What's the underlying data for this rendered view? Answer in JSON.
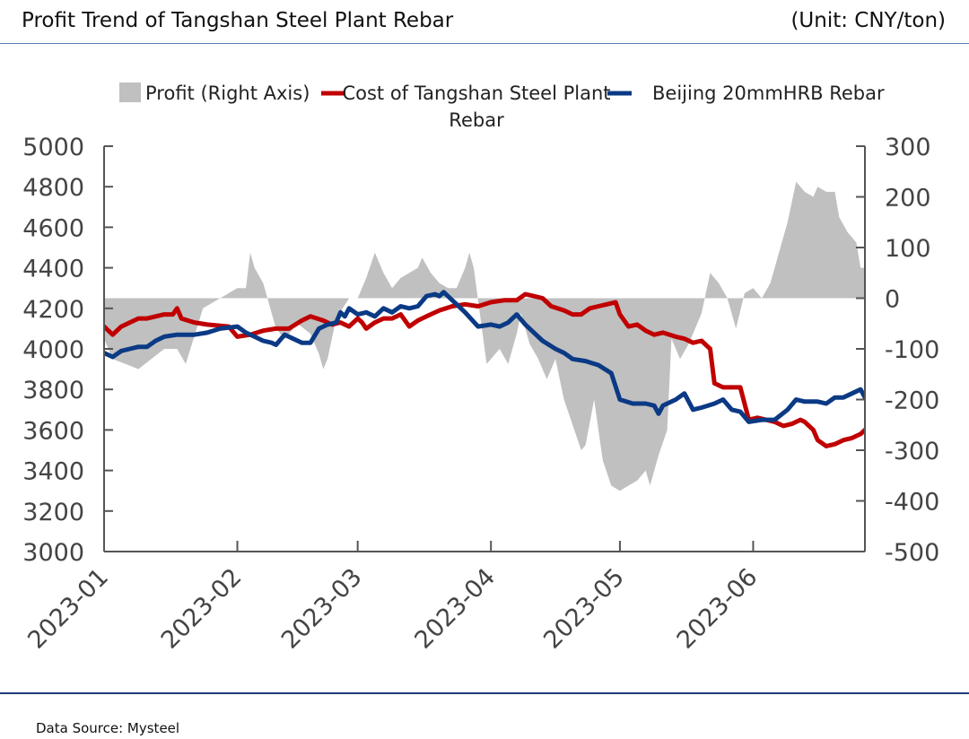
{
  "header": {
    "title": "Profit Trend of Tangshan Steel Plant Rebar",
    "unit": "(Unit: CNY/ton)"
  },
  "footer": {
    "source": "Data Source: Mysteel"
  },
  "colors": {
    "profit": "#c0c0c0",
    "cost": "#c00000",
    "rebar": "#0b3a85",
    "axis": "#555555",
    "rule_top": "#5b7fb0",
    "rule_bottom": "#1f3a7a"
  },
  "chart_data": {
    "type": "line",
    "title": "Profit Trend of Tangshan Steel Plant Rebar",
    "left_axis": {
      "ylim": [
        3000,
        5000
      ],
      "ticks": [
        3000,
        3200,
        3400,
        3600,
        3800,
        4000,
        4200,
        4400,
        4600,
        4800,
        5000
      ]
    },
    "right_axis": {
      "ylim": [
        -500,
        300
      ],
      "ticks": [
        -500,
        -400,
        -300,
        -200,
        -100,
        0,
        100,
        200,
        300
      ]
    },
    "x_axis": {
      "range": [
        "2023-01-01",
        "2023-06-27"
      ],
      "ticks": [
        "2023-01",
        "2023-02",
        "2023-03",
        "2023-04",
        "2023-05",
        "2023-06"
      ]
    },
    "grid": false,
    "legend_position": "top",
    "legend": [
      "Profit (Right Axis)",
      "Cost of Tangshan Steel Plant Rebar",
      "Beijing 20mmHRB Rebar"
    ],
    "series": [
      {
        "name": "Profit (Right Axis)",
        "style": "area",
        "axis": "right",
        "points": [
          [
            "2023-01-01",
            -80
          ],
          [
            "2023-01-03",
            -120
          ],
          [
            "2023-01-06",
            -130
          ],
          [
            "2023-01-09",
            -140
          ],
          [
            "2023-01-12",
            -120
          ],
          [
            "2023-01-15",
            -100
          ],
          [
            "2023-01-18",
            -100
          ],
          [
            "2023-01-20",
            -130
          ],
          [
            "2023-01-24",
            -20
          ],
          [
            "2023-01-28",
            0
          ],
          [
            "2023-02-01",
            20
          ],
          [
            "2023-02-03",
            20
          ],
          [
            "2023-02-04",
            90
          ],
          [
            "2023-02-05",
            60
          ],
          [
            "2023-02-07",
            30
          ],
          [
            "2023-02-08",
            0
          ],
          [
            "2023-02-10",
            -60
          ],
          [
            "2023-02-12",
            -80
          ],
          [
            "2023-02-15",
            -50
          ],
          [
            "2023-02-18",
            -70
          ],
          [
            "2023-02-20",
            -110
          ],
          [
            "2023-02-21",
            -140
          ],
          [
            "2023-02-22",
            -120
          ],
          [
            "2023-02-24",
            -40
          ],
          [
            "2023-02-27",
            0
          ],
          [
            "2023-03-01",
            0
          ],
          [
            "2023-03-03",
            40
          ],
          [
            "2023-03-05",
            90
          ],
          [
            "2023-03-07",
            50
          ],
          [
            "2023-03-09",
            20
          ],
          [
            "2023-03-11",
            40
          ],
          [
            "2023-03-13",
            50
          ],
          [
            "2023-03-15",
            60
          ],
          [
            "2023-03-16",
            80
          ],
          [
            "2023-03-18",
            50
          ],
          [
            "2023-03-20",
            30
          ],
          [
            "2023-03-22",
            20
          ],
          [
            "2023-03-24",
            20
          ],
          [
            "2023-03-26",
            60
          ],
          [
            "2023-03-27",
            90
          ],
          [
            "2023-03-28",
            60
          ],
          [
            "2023-03-31",
            -130
          ],
          [
            "2023-04-03",
            -100
          ],
          [
            "2023-04-05",
            -130
          ],
          [
            "2023-04-07",
            -70
          ],
          [
            "2023-04-08",
            -30
          ],
          [
            "2023-04-10",
            -90
          ],
          [
            "2023-04-12",
            -120
          ],
          [
            "2023-04-14",
            -160
          ],
          [
            "2023-04-16",
            -120
          ],
          [
            "2023-04-18",
            -200
          ],
          [
            "2023-04-20",
            -250
          ],
          [
            "2023-04-22",
            -300
          ],
          [
            "2023-04-23",
            -290
          ],
          [
            "2023-04-25",
            -200
          ],
          [
            "2023-04-27",
            -320
          ],
          [
            "2023-04-29",
            -370
          ],
          [
            "2023-05-01",
            -380
          ],
          [
            "2023-05-03",
            -370
          ],
          [
            "2023-05-05",
            -360
          ],
          [
            "2023-05-07",
            -340
          ],
          [
            "2023-05-08",
            -370
          ],
          [
            "2023-05-10",
            -310
          ],
          [
            "2023-05-12",
            -260
          ],
          [
            "2023-05-13",
            -80
          ],
          [
            "2023-05-15",
            -120
          ],
          [
            "2023-05-17",
            -90
          ],
          [
            "2023-05-18",
            -70
          ],
          [
            "2023-05-20",
            -30
          ],
          [
            "2023-05-22",
            50
          ],
          [
            "2023-05-24",
            30
          ],
          [
            "2023-05-26",
            0
          ],
          [
            "2023-05-28",
            -60
          ],
          [
            "2023-05-30",
            10
          ],
          [
            "2023-06-01",
            20
          ],
          [
            "2023-06-03",
            0
          ],
          [
            "2023-06-05",
            30
          ],
          [
            "2023-06-07",
            90
          ],
          [
            "2023-06-09",
            150
          ],
          [
            "2023-06-11",
            230
          ],
          [
            "2023-06-13",
            210
          ],
          [
            "2023-06-15",
            200
          ],
          [
            "2023-06-16",
            220
          ],
          [
            "2023-06-18",
            210
          ],
          [
            "2023-06-20",
            210
          ],
          [
            "2023-06-21",
            160
          ],
          [
            "2023-06-23",
            130
          ],
          [
            "2023-06-25",
            110
          ],
          [
            "2023-06-26",
            60
          ],
          [
            "2023-06-27",
            60
          ]
        ]
      },
      {
        "name": "Cost of Tangshan Steel Plant Rebar",
        "style": "line",
        "axis": "left",
        "points": [
          [
            "2023-01-01",
            4110
          ],
          [
            "2023-01-03",
            4070
          ],
          [
            "2023-01-05",
            4110
          ],
          [
            "2023-01-07",
            4130
          ],
          [
            "2023-01-09",
            4150
          ],
          [
            "2023-01-11",
            4150
          ],
          [
            "2023-01-13",
            4160
          ],
          [
            "2023-01-15",
            4170
          ],
          [
            "2023-01-17",
            4170
          ],
          [
            "2023-01-18",
            4200
          ],
          [
            "2023-01-19",
            4150
          ],
          [
            "2023-01-22",
            4130
          ],
          [
            "2023-01-25",
            4120
          ],
          [
            "2023-01-30",
            4110
          ],
          [
            "2023-02-01",
            4060
          ],
          [
            "2023-02-04",
            4070
          ],
          [
            "2023-02-07",
            4090
          ],
          [
            "2023-02-10",
            4100
          ],
          [
            "2023-02-13",
            4100
          ],
          [
            "2023-02-16",
            4140
          ],
          [
            "2023-02-18",
            4160
          ],
          [
            "2023-02-21",
            4140
          ],
          [
            "2023-02-23",
            4120
          ],
          [
            "2023-02-25",
            4130
          ],
          [
            "2023-02-27",
            4110
          ],
          [
            "2023-03-01",
            4150
          ],
          [
            "2023-03-02",
            4130
          ],
          [
            "2023-03-03",
            4100
          ],
          [
            "2023-03-05",
            4130
          ],
          [
            "2023-03-07",
            4150
          ],
          [
            "2023-03-09",
            4150
          ],
          [
            "2023-03-11",
            4170
          ],
          [
            "2023-03-13",
            4110
          ],
          [
            "2023-03-15",
            4140
          ],
          [
            "2023-03-17",
            4160
          ],
          [
            "2023-03-20",
            4190
          ],
          [
            "2023-03-23",
            4210
          ],
          [
            "2023-03-26",
            4220
          ],
          [
            "2023-03-29",
            4210
          ],
          [
            "2023-04-01",
            4230
          ],
          [
            "2023-04-04",
            4240
          ],
          [
            "2023-04-07",
            4240
          ],
          [
            "2023-04-09",
            4270
          ],
          [
            "2023-04-11",
            4260
          ],
          [
            "2023-04-13",
            4250
          ],
          [
            "2023-04-15",
            4210
          ],
          [
            "2023-04-18",
            4190
          ],
          [
            "2023-04-20",
            4170
          ],
          [
            "2023-04-22",
            4170
          ],
          [
            "2023-04-24",
            4200
          ],
          [
            "2023-04-26",
            4210
          ],
          [
            "2023-04-28",
            4220
          ],
          [
            "2023-04-30",
            4230
          ],
          [
            "2023-05-01",
            4170
          ],
          [
            "2023-05-03",
            4110
          ],
          [
            "2023-05-05",
            4120
          ],
          [
            "2023-05-07",
            4090
          ],
          [
            "2023-05-09",
            4070
          ],
          [
            "2023-05-11",
            4080
          ],
          [
            "2023-05-14",
            4060
          ],
          [
            "2023-05-16",
            4050
          ],
          [
            "2023-05-18",
            4030
          ],
          [
            "2023-05-20",
            4040
          ],
          [
            "2023-05-22",
            4000
          ],
          [
            "2023-05-23",
            3830
          ],
          [
            "2023-05-25",
            3810
          ],
          [
            "2023-05-27",
            3810
          ],
          [
            "2023-05-29",
            3810
          ],
          [
            "2023-05-31",
            3650
          ],
          [
            "2023-06-02",
            3660
          ],
          [
            "2023-06-04",
            3650
          ],
          [
            "2023-06-06",
            3640
          ],
          [
            "2023-06-08",
            3620
          ],
          [
            "2023-06-10",
            3630
          ],
          [
            "2023-06-12",
            3650
          ],
          [
            "2023-06-13",
            3640
          ],
          [
            "2023-06-15",
            3600
          ],
          [
            "2023-06-16",
            3550
          ],
          [
            "2023-06-18",
            3520
          ],
          [
            "2023-06-20",
            3530
          ],
          [
            "2023-06-22",
            3550
          ],
          [
            "2023-06-24",
            3560
          ],
          [
            "2023-06-26",
            3580
          ],
          [
            "2023-06-28",
            3620
          ],
          [
            "2023-06-30",
            3620
          ],
          [
            "2023-07-02",
            3620
          ],
          [
            "2023-07-03",
            3660
          ]
        ]
      },
      {
        "name": "Beijing 20mmHRB Rebar",
        "style": "line",
        "axis": "left",
        "points": [
          [
            "2023-01-01",
            3980
          ],
          [
            "2023-01-03",
            3960
          ],
          [
            "2023-01-05",
            3990
          ],
          [
            "2023-01-07",
            4000
          ],
          [
            "2023-01-09",
            4010
          ],
          [
            "2023-01-11",
            4010
          ],
          [
            "2023-01-13",
            4040
          ],
          [
            "2023-01-15",
            4060
          ],
          [
            "2023-01-18",
            4070
          ],
          [
            "2023-01-22",
            4070
          ],
          [
            "2023-01-25",
            4080
          ],
          [
            "2023-01-28",
            4100
          ],
          [
            "2023-02-01",
            4110
          ],
          [
            "2023-02-03",
            4080
          ],
          [
            "2023-02-05",
            4060
          ],
          [
            "2023-02-07",
            4040
          ],
          [
            "2023-02-09",
            4030
          ],
          [
            "2023-02-10",
            4020
          ],
          [
            "2023-02-12",
            4070
          ],
          [
            "2023-02-14",
            4050
          ],
          [
            "2023-02-16",
            4030
          ],
          [
            "2023-02-18",
            4030
          ],
          [
            "2023-02-20",
            4100
          ],
          [
            "2023-02-22",
            4120
          ],
          [
            "2023-02-24",
            4130
          ],
          [
            "2023-02-25",
            4180
          ],
          [
            "2023-02-26",
            4160
          ],
          [
            "2023-02-27",
            4200
          ],
          [
            "2023-03-01",
            4170
          ],
          [
            "2023-03-03",
            4180
          ],
          [
            "2023-03-05",
            4160
          ],
          [
            "2023-03-07",
            4200
          ],
          [
            "2023-03-09",
            4180
          ],
          [
            "2023-03-11",
            4210
          ],
          [
            "2023-03-13",
            4200
          ],
          [
            "2023-03-15",
            4210
          ],
          [
            "2023-03-17",
            4260
          ],
          [
            "2023-03-19",
            4270
          ],
          [
            "2023-03-20",
            4260
          ],
          [
            "2023-03-21",
            4280
          ],
          [
            "2023-03-23",
            4240
          ],
          [
            "2023-03-26",
            4180
          ],
          [
            "2023-03-29",
            4110
          ],
          [
            "2023-04-01",
            4120
          ],
          [
            "2023-04-03",
            4110
          ],
          [
            "2023-04-05",
            4130
          ],
          [
            "2023-04-07",
            4170
          ],
          [
            "2023-04-09",
            4120
          ],
          [
            "2023-04-11",
            4080
          ],
          [
            "2023-04-13",
            4040
          ],
          [
            "2023-04-16",
            4000
          ],
          [
            "2023-04-18",
            3980
          ],
          [
            "2023-04-20",
            3950
          ],
          [
            "2023-04-23",
            3940
          ],
          [
            "2023-04-26",
            3920
          ],
          [
            "2023-04-29",
            3880
          ],
          [
            "2023-05-01",
            3750
          ],
          [
            "2023-05-04",
            3730
          ],
          [
            "2023-05-07",
            3730
          ],
          [
            "2023-05-09",
            3720
          ],
          [
            "2023-05-10",
            3680
          ],
          [
            "2023-05-11",
            3720
          ],
          [
            "2023-05-14",
            3750
          ],
          [
            "2023-05-16",
            3780
          ],
          [
            "2023-05-18",
            3700
          ],
          [
            "2023-05-20",
            3710
          ],
          [
            "2023-05-23",
            3730
          ],
          [
            "2023-05-25",
            3750
          ],
          [
            "2023-05-27",
            3700
          ],
          [
            "2023-05-29",
            3690
          ],
          [
            "2023-05-31",
            3640
          ],
          [
            "2023-06-03",
            3650
          ],
          [
            "2023-06-06",
            3650
          ],
          [
            "2023-06-09",
            3700
          ],
          [
            "2023-06-11",
            3750
          ],
          [
            "2023-06-13",
            3740
          ],
          [
            "2023-06-16",
            3740
          ],
          [
            "2023-06-18",
            3730
          ],
          [
            "2023-06-20",
            3760
          ],
          [
            "2023-06-22",
            3760
          ],
          [
            "2023-06-24",
            3780
          ],
          [
            "2023-06-26",
            3800
          ],
          [
            "2023-06-27",
            3760
          ],
          [
            "2023-06-29",
            3750
          ],
          [
            "2023-07-01",
            3720
          ],
          [
            "2023-07-03",
            3750
          ]
        ]
      }
    ]
  }
}
